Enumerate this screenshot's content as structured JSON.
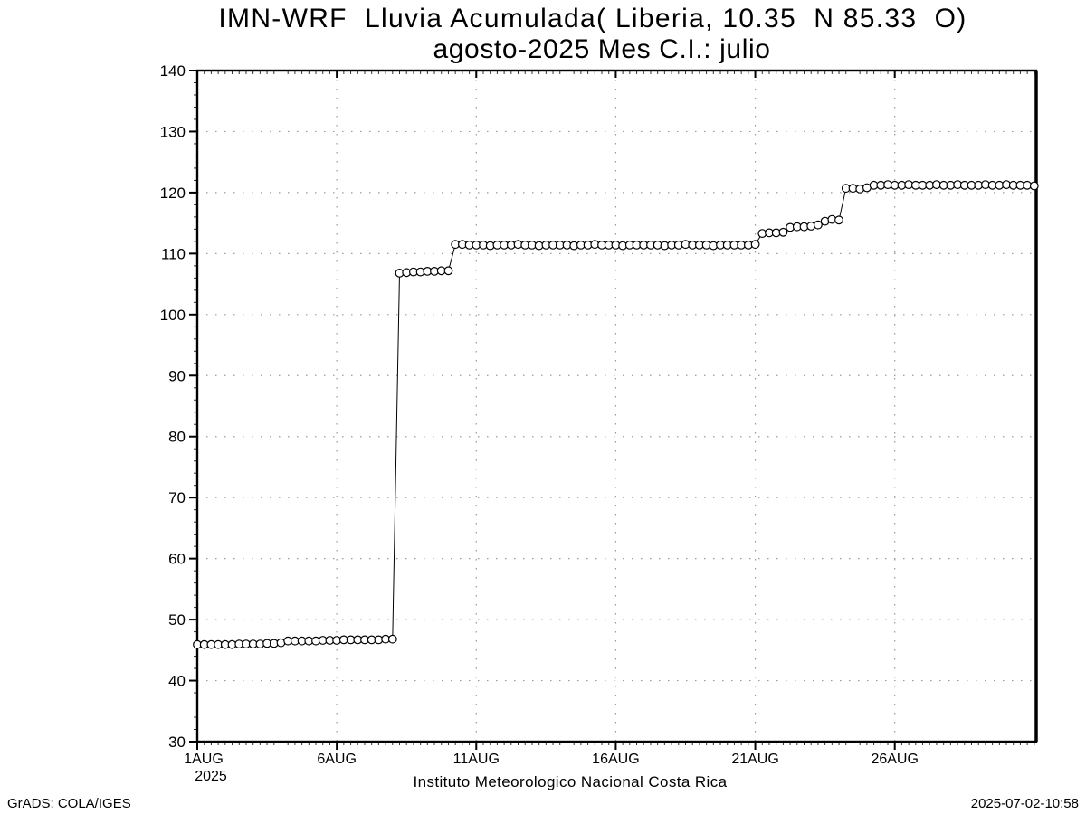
{
  "header": {
    "title": "IMN-WRF  Lluvia Acumulada( Liberia, 10.35  N 85.33  O)",
    "subtitle": "agosto-2025 Mes C.I.: julio"
  },
  "footer": {
    "caption": "Instituto Meteorologico Nacional Costa Rica",
    "credit": "GrADS: COLA/IGES",
    "timestamp": "2025-07-02-10:58"
  },
  "chart_data": {
    "type": "line",
    "title": "IMN-WRF  Lluvia Acumulada( Liberia, 10.35  N 85.33  O)",
    "subtitle": "agosto-2025 Mes C.I.: julio",
    "xlabel": "",
    "ylabel": "",
    "marker": "open-circle",
    "grid": true,
    "legend": "none",
    "colors": {
      "line": "#000000",
      "marker_fill": "#ffffff",
      "marker_stroke": "#000000",
      "grid": "#999999",
      "frame": "#000000",
      "text": "#000000"
    },
    "ylim": [
      30,
      140
    ],
    "xlim_days": [
      0,
      30.07
    ],
    "y_ticks": [
      30,
      40,
      50,
      60,
      70,
      80,
      90,
      100,
      110,
      120,
      130,
      140
    ],
    "x_ticks": [
      {
        "day": 0,
        "label": "1AUG",
        "sublabel": "2025"
      },
      {
        "day": 5,
        "label": "6AUG"
      },
      {
        "day": 10,
        "label": "11AUG"
      },
      {
        "day": 15,
        "label": "16AUG"
      },
      {
        "day": 20,
        "label": "21AUG"
      },
      {
        "day": 25,
        "label": "26AUG"
      }
    ],
    "x_start_day": 0,
    "x_step_days": 0.25,
    "values": [
      45.9,
      45.9,
      45.9,
      45.9,
      45.9,
      45.9,
      46.0,
      46.0,
      46.0,
      46.0,
      46.1,
      46.1,
      46.2,
      46.5,
      46.5,
      46.5,
      46.5,
      46.5,
      46.6,
      46.6,
      46.6,
      46.7,
      46.7,
      46.7,
      46.7,
      46.7,
      46.7,
      46.8,
      46.8,
      106.8,
      106.9,
      107.0,
      107.0,
      107.1,
      107.1,
      107.2,
      107.2,
      111.5,
      111.5,
      111.4,
      111.4,
      111.4,
      111.3,
      111.4,
      111.4,
      111.4,
      111.5,
      111.4,
      111.4,
      111.3,
      111.4,
      111.4,
      111.4,
      111.4,
      111.3,
      111.4,
      111.4,
      111.5,
      111.4,
      111.4,
      111.4,
      111.3,
      111.4,
      111.4,
      111.4,
      111.4,
      111.4,
      111.3,
      111.4,
      111.4,
      111.5,
      111.4,
      111.4,
      111.4,
      111.3,
      111.4,
      111.4,
      111.4,
      111.4,
      111.4,
      111.5,
      113.3,
      113.4,
      113.4,
      113.5,
      114.3,
      114.4,
      114.4,
      114.5,
      114.7,
      115.3,
      115.6,
      115.5,
      120.7,
      120.7,
      120.6,
      120.8,
      121.2,
      121.2,
      121.3,
      121.2,
      121.2,
      121.3,
      121.2,
      121.2,
      121.2,
      121.3,
      121.2,
      121.2,
      121.3,
      121.2,
      121.2,
      121.2,
      121.3,
      121.2,
      121.2,
      121.3,
      121.2,
      121.2,
      121.2,
      121.1
    ]
  }
}
